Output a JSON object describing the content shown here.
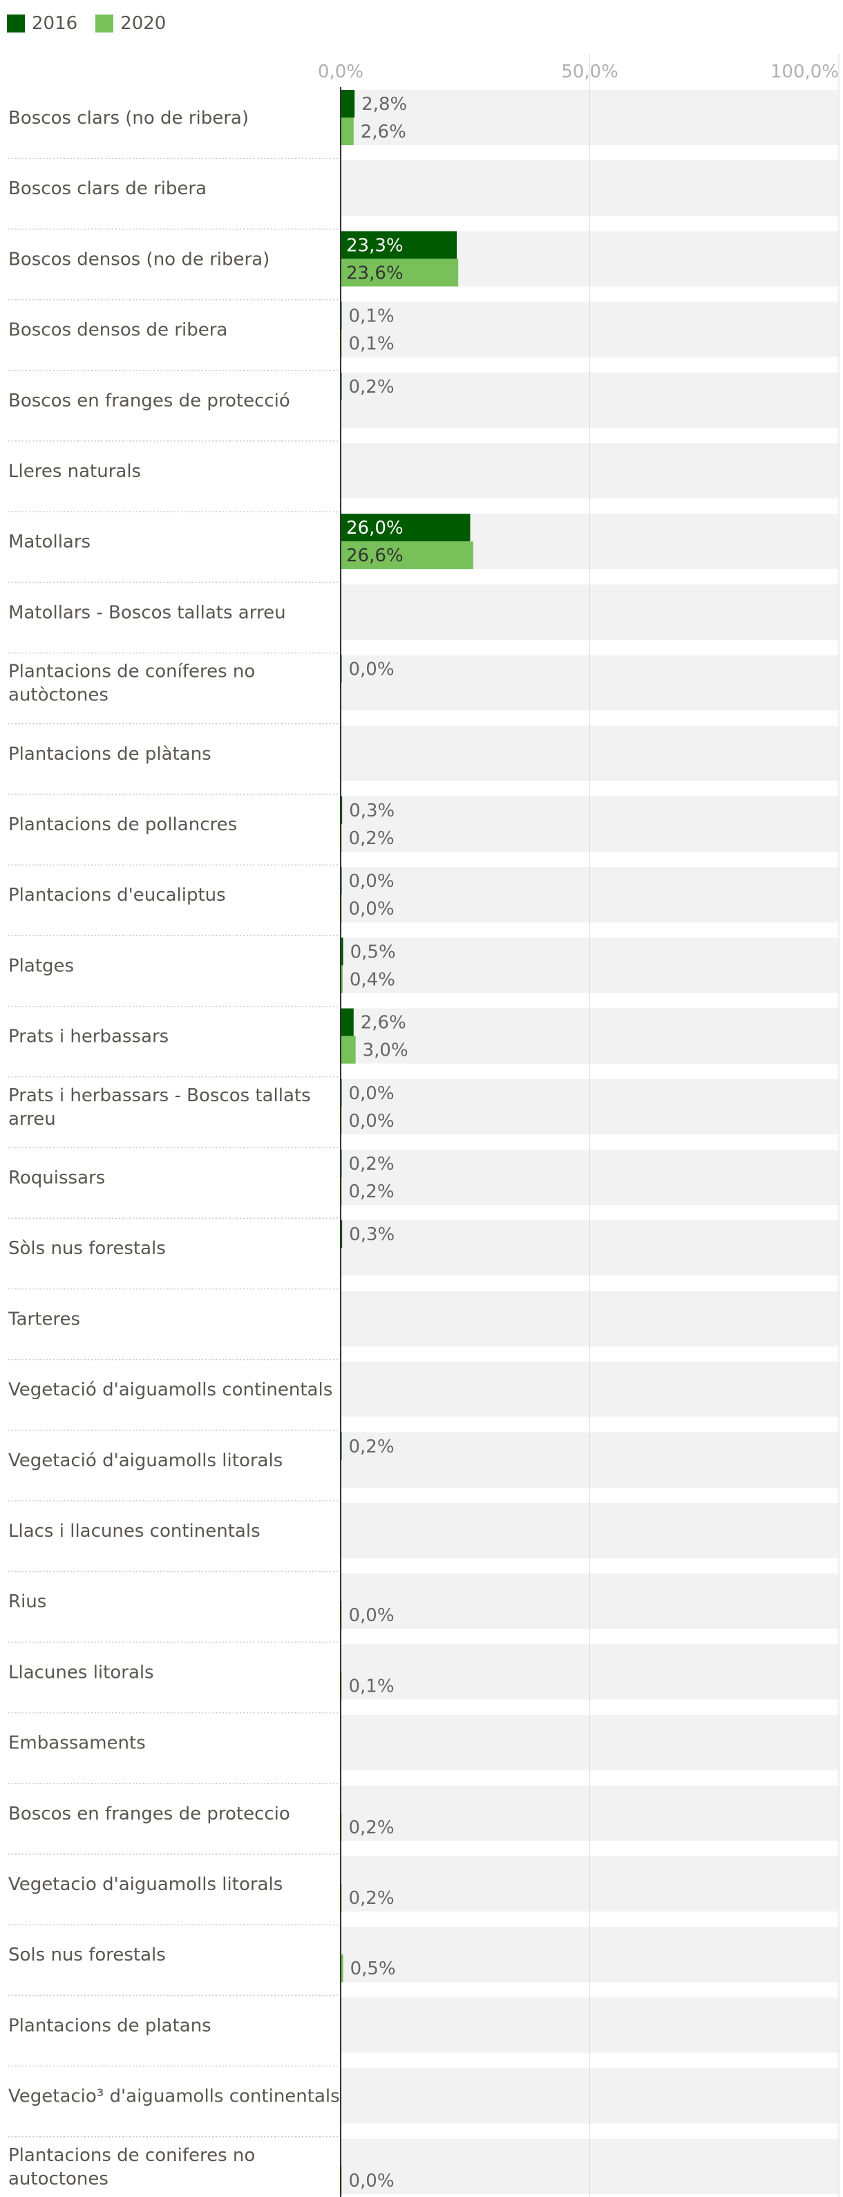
{
  "colors": {
    "series_2016": "#005a00",
    "series_2020": "#78c05a",
    "track": "#f2f2f2",
    "axis": "#333333",
    "grid": "#d9d9d9",
    "separator": "#c8c8c8",
    "label": "#5a5550",
    "tick": "#b0b0b0"
  },
  "chart_data": {
    "type": "bar",
    "orientation": "horizontal",
    "title": "",
    "xlabel": "",
    "ylabel": "",
    "xlim": [
      0,
      100
    ],
    "x_ticks": [
      "0,0%",
      "50,0%",
      "100,0%"
    ],
    "grid": true,
    "legend_position": "top-left",
    "series": [
      {
        "name": "2016",
        "color": "#005a00"
      },
      {
        "name": "2020",
        "color": "#78c05a"
      }
    ],
    "categories": [
      "Boscos clars (no de ribera)",
      "Boscos clars de ribera",
      "Boscos densos (no de ribera)",
      "Boscos densos de ribera",
      "Boscos en franges de protecció",
      "Lleres naturals",
      "Matollars",
      "Matollars - Boscos tallats arreu",
      "Plantacions de coníferes no autòctones",
      "Plantacions de plàtans",
      "Plantacions de pollancres",
      "Plantacions d'eucaliptus",
      "Platges",
      "Prats i herbassars",
      "Prats i herbassars - Boscos tallats arreu",
      "Roquissars",
      "Sòls nus forestals",
      "Tarteres",
      "Vegetació d'aiguamolls continentals",
      "Vegetació d'aiguamolls litorals",
      "Llacs i llacunes continentals",
      "Rius",
      "Llacunes litorals",
      "Embassaments",
      "Boscos en franges de proteccio",
      "Vegetacio d'aiguamolls litorals",
      "Sols nus forestals",
      "Plantacions de platans",
      "Vegetacio³ d'aiguamolls continentals",
      "Plantacions de coniferes no autoctones"
    ],
    "values_2016": [
      2.8,
      null,
      23.3,
      0.1,
      0.2,
      null,
      26.0,
      null,
      0.0,
      null,
      0.3,
      0.0,
      0.5,
      2.6,
      0.0,
      0.2,
      0.3,
      null,
      null,
      0.2,
      null,
      null,
      null,
      null,
      null,
      null,
      null,
      null,
      null,
      null
    ],
    "values_2020": [
      2.6,
      null,
      23.6,
      0.1,
      null,
      null,
      26.6,
      null,
      null,
      null,
      0.2,
      0.0,
      0.4,
      3.0,
      0.0,
      0.2,
      null,
      null,
      null,
      null,
      null,
      0.0,
      0.1,
      null,
      0.2,
      0.2,
      0.5,
      null,
      null,
      0.0
    ],
    "labels_2016": [
      "2,8%",
      "",
      "23,3%",
      "0,1%",
      "0,2%",
      "",
      "26,0%",
      "",
      "0,0%",
      "",
      "0,3%",
      "0,0%",
      "0,5%",
      "2,6%",
      "0,0%",
      "0,2%",
      "0,3%",
      "",
      "",
      "0,2%",
      "",
      "",
      "",
      "",
      "",
      "",
      "",
      "",
      "",
      ""
    ],
    "labels_2020": [
      "2,6%",
      "",
      "23,6%",
      "0,1%",
      "",
      "",
      "26,6%",
      "",
      "",
      "",
      "0,2%",
      "0,0%",
      "0,4%",
      "3,0%",
      "0,0%",
      "0,2%",
      "",
      "",
      "",
      "",
      "",
      "0,0%",
      "0,1%",
      "",
      "0,2%",
      "0,2%",
      "0,5%",
      "",
      "",
      "0,0%"
    ]
  }
}
